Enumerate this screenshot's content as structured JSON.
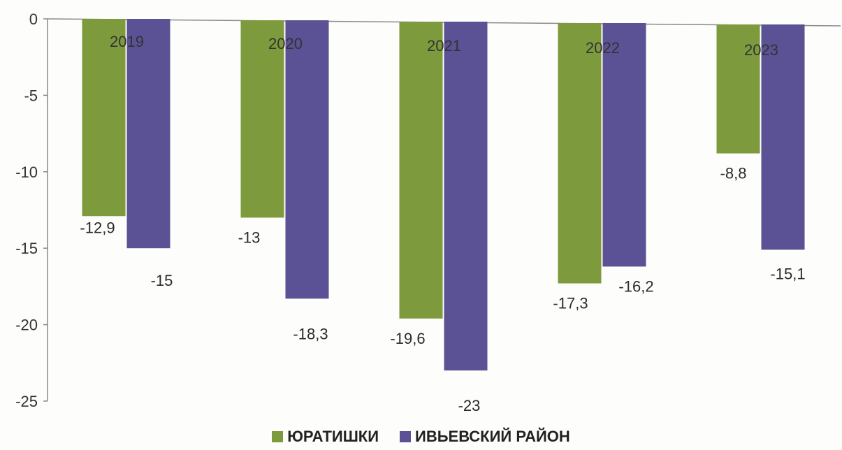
{
  "chart_data": {
    "type": "bar",
    "categories": [
      "2019",
      "2020",
      "2021",
      "2022",
      "2023"
    ],
    "series": [
      {
        "name": "ЮРАТИШКИ",
        "values": [
          -12.9,
          -13,
          -19.6,
          -17.3,
          -8.8
        ],
        "labels": [
          "-12,9",
          "-13",
          "-19,6",
          "-17,3",
          "-8,8"
        ],
        "color": "#7d9a3c"
      },
      {
        "name": "ИВЬЕВСКИЙ РАЙОН",
        "values": [
          -15,
          -18.3,
          -23,
          -16.2,
          -15.1
        ],
        "labels": [
          "-15",
          "-18,3",
          "-23",
          "-16,2",
          "-15,1"
        ],
        "color": "#5a5294"
      }
    ],
    "y_ticks": [
      "0",
      "-5",
      "-10",
      "-15",
      "-20",
      "-25"
    ],
    "ylim": [
      -25,
      0
    ],
    "grid": false,
    "legend_position": "bottom"
  }
}
